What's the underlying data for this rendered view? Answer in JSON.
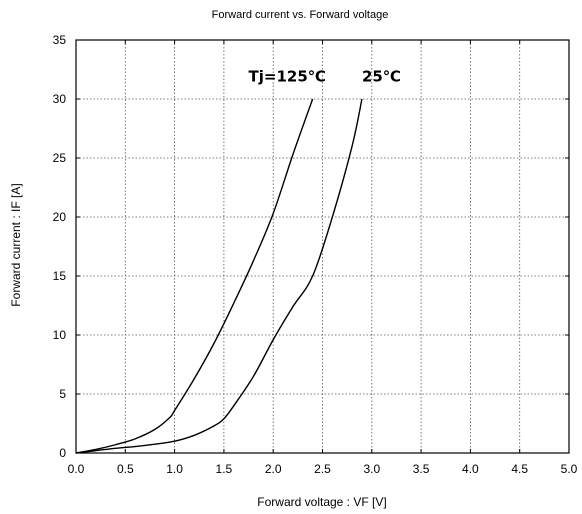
{
  "chart_data": {
    "type": "line",
    "title": "Forward current vs. Forward voltage",
    "xlabel": "Forward voltage  :  VF [V]",
    "ylabel": "Forward current  :  IF [A]",
    "xlim": [
      0,
      5
    ],
    "ylim": [
      0,
      35
    ],
    "xticks": [
      "0.0",
      "0.5",
      "1.0",
      "1.5",
      "2.0",
      "2.5",
      "3.0",
      "3.5",
      "4.0",
      "4.5",
      "5.0"
    ],
    "yticks": [
      "0",
      "5",
      "10",
      "15",
      "20",
      "25",
      "30",
      "35"
    ],
    "grid": true,
    "annotations": [
      {
        "text": "Tj=125℃",
        "x": 1.75,
        "y": 31.5
      },
      {
        "text": "25℃",
        "x": 2.9,
        "y": 31.5
      }
    ],
    "series": [
      {
        "name": "Tj=125℃",
        "x": [
          0.0,
          0.2,
          0.4,
          0.6,
          0.8,
          0.95,
          1.0,
          1.2,
          1.4,
          1.6,
          1.8,
          2.0,
          2.2,
          2.4
        ],
        "y": [
          0.0,
          0.3,
          0.7,
          1.2,
          2.0,
          3.0,
          3.6,
          6.3,
          9.3,
          12.7,
          16.3,
          20.3,
          25.3,
          30.0
        ]
      },
      {
        "name": "Tj=25℃",
        "x": [
          0.0,
          0.2,
          0.4,
          0.6,
          0.8,
          1.0,
          1.2,
          1.4,
          1.5,
          1.6,
          1.8,
          2.0,
          2.2,
          2.4,
          2.6,
          2.8,
          2.9
        ],
        "y": [
          0.0,
          0.2,
          0.4,
          0.55,
          0.75,
          1.0,
          1.5,
          2.3,
          2.9,
          4.0,
          6.5,
          9.6,
          12.4,
          15.0,
          20.0,
          26.0,
          30.0
        ]
      }
    ]
  }
}
